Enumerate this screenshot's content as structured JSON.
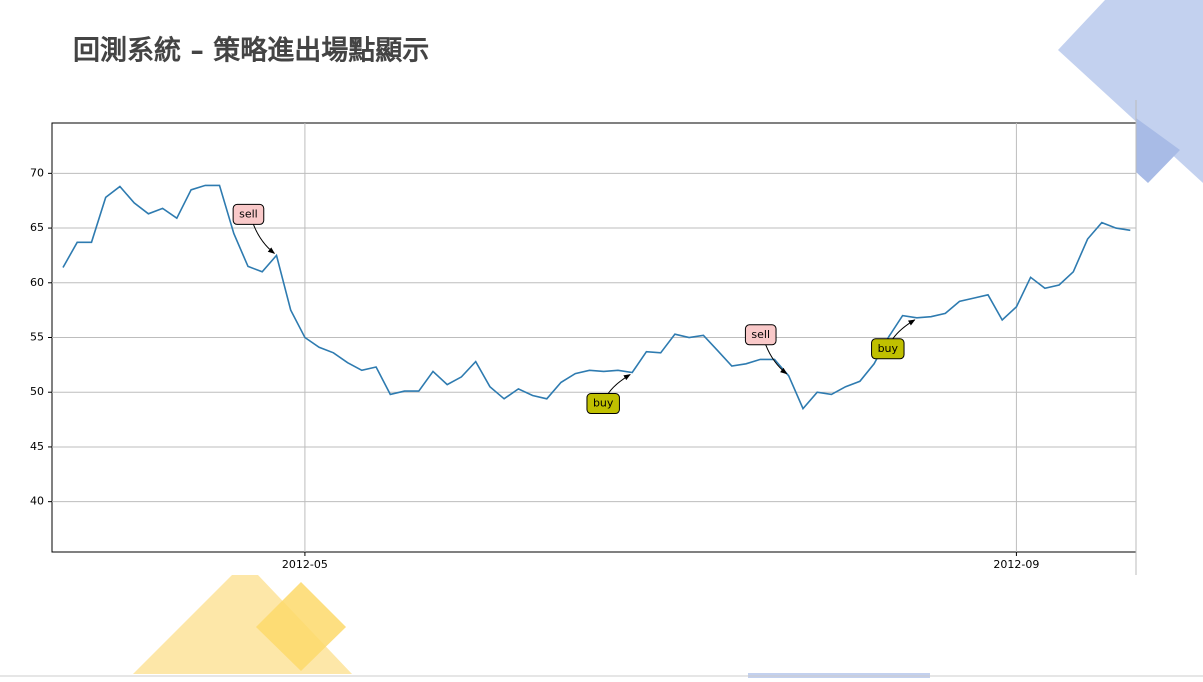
{
  "title": "回測系統 – 策略進出場點顯示",
  "chart_data": {
    "type": "line",
    "categories": [
      null,
      null,
      null,
      null,
      null,
      null,
      null,
      null,
      null,
      null,
      null,
      null,
      null,
      null,
      null,
      null,
      null,
      "2012-05",
      null,
      null,
      null,
      null,
      null,
      null,
      null,
      null,
      null,
      null,
      null,
      null,
      null,
      null,
      null,
      null,
      null,
      null,
      null,
      null,
      null,
      null,
      null,
      null,
      null,
      null,
      null,
      null,
      null,
      null,
      null,
      null,
      null,
      null,
      null,
      null,
      null,
      null,
      null,
      null,
      null,
      null,
      null,
      null,
      null,
      null,
      null,
      null,
      null,
      "2012-09",
      null,
      null,
      null,
      null,
      null,
      null,
      null,
      null
    ],
    "values": [
      61.4,
      63.7,
      63.7,
      67.8,
      68.8,
      67.3,
      66.3,
      66.8,
      65.9,
      68.5,
      68.9,
      68.9,
      64.5,
      61.5,
      61.0,
      62.5,
      57.5,
      55.0,
      54.1,
      53.6,
      52.7,
      52.0,
      52.3,
      49.8,
      50.1,
      50.1,
      51.9,
      50.7,
      51.4,
      52.8,
      50.5,
      49.4,
      50.3,
      49.7,
      49.4,
      50.9,
      51.7,
      52.0,
      51.9,
      52.0,
      51.8,
      53.7,
      53.6,
      55.3,
      55.0,
      55.2,
      53.8,
      52.4,
      52.6,
      53.0,
      53.0,
      51.5,
      48.5,
      50.0,
      49.8,
      50.5,
      51.0,
      52.6,
      55.0,
      57.0,
      56.8,
      56.9,
      57.2,
      58.3,
      58.6,
      58.9,
      56.6,
      57.8,
      60.5,
      59.5,
      59.8,
      61.0,
      64.0,
      65.5,
      65.0,
      64.8
    ],
    "color": "#2e7bb0",
    "ylim": [
      35.4,
      74.6
    ],
    "yticks": [
      40,
      45,
      50,
      55,
      60,
      65,
      70
    ],
    "grid": true,
    "annotations": [
      {
        "text": "sell",
        "color": "#f9c9c9"
      },
      {
        "text": "buy",
        "color": "#c0c000"
      },
      {
        "text": "sell",
        "color": "#f9c9c9"
      },
      {
        "text": "buy",
        "color": "#c0c000"
      }
    ]
  }
}
